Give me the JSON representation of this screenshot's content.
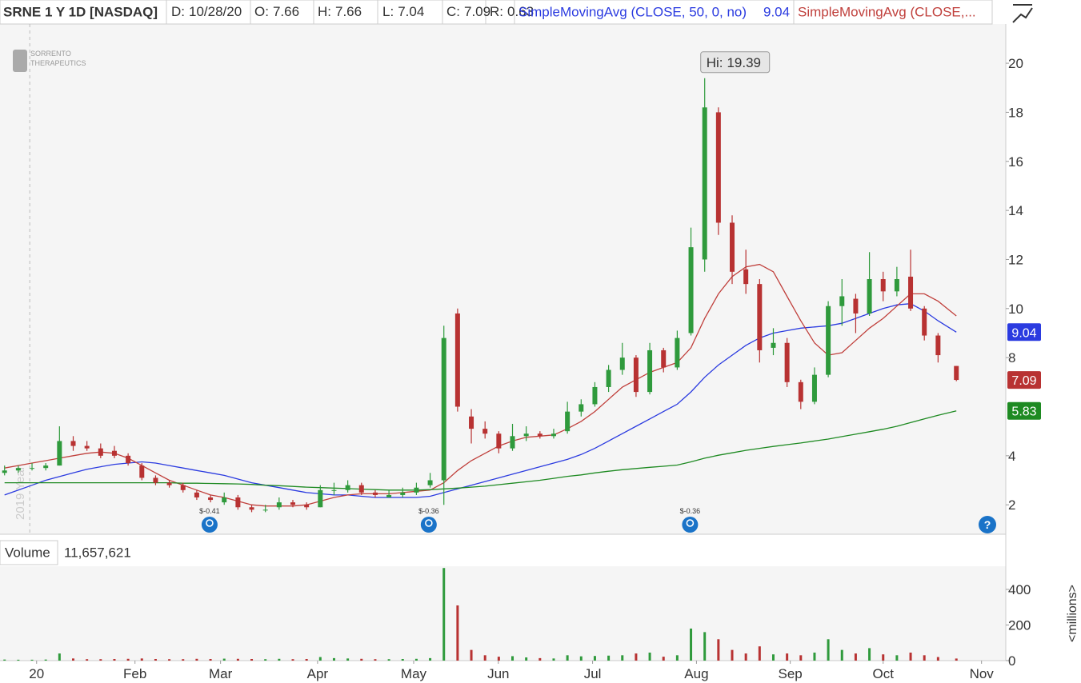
{
  "header": {
    "symbol": "SRNE 1 Y 1D [NASDAQ]",
    "date_label": "D:",
    "date": "10/28/20",
    "open_label": "O:",
    "high_label": "H:",
    "low_label": "L:",
    "close_label": "C:",
    "range_label": "R:",
    "range": 0.63
  },
  "chart_data": [
    {
      "type": "candlestick",
      "x": [
        0,
        3,
        6,
        9,
        12,
        15,
        18,
        21,
        24,
        27,
        30,
        33,
        36,
        39,
        42,
        45,
        48,
        51,
        54,
        57,
        60,
        63,
        66,
        69,
        72,
        75,
        78,
        81,
        84,
        87,
        90,
        93,
        96,
        99,
        102,
        105,
        108,
        111,
        114,
        117,
        120,
        123,
        126,
        129,
        132,
        135,
        138,
        141,
        144,
        147,
        150,
        153,
        156,
        159,
        162,
        165,
        168,
        171,
        174,
        177,
        180,
        183,
        186,
        189,
        192,
        195,
        198,
        201,
        204,
        208
      ],
      "open": [
        3.3,
        3.4,
        3.5,
        3.5,
        3.6,
        4.6,
        4.4,
        4.3,
        4.2,
        4.0,
        3.6,
        3.1,
        2.9,
        2.8,
        2.5,
        2.3,
        2.1,
        2.3,
        1.9,
        1.8,
        1.9,
        2.1,
        2.0,
        1.9,
        2.6,
        2.6,
        2.8,
        2.5,
        2.3,
        2.4,
        2.5,
        2.8,
        3.0,
        9.8,
        5.6,
        5.1,
        4.9,
        4.3,
        4.8,
        4.9,
        4.8,
        5.0,
        5.8,
        6.1,
        6.8,
        7.5,
        8.0,
        6.6,
        8.3,
        7.6,
        9.0,
        12.0,
        18.0,
        13.5,
        11.6,
        11.0,
        8.4,
        8.6,
        7.0,
        6.2,
        7.3,
        10.1,
        10.4,
        9.8,
        11.2,
        10.7,
        11.3,
        10.0,
        8.9,
        7.66
      ],
      "high": [
        3.6,
        3.6,
        3.7,
        3.7,
        5.2,
        4.8,
        4.6,
        4.5,
        4.4,
        4.1,
        3.7,
        3.2,
        3.0,
        2.9,
        2.6,
        2.4,
        2.5,
        2.4,
        2.0,
        2.0,
        2.3,
        2.2,
        2.1,
        2.8,
        2.9,
        3.0,
        2.9,
        2.6,
        2.6,
        2.7,
        2.9,
        3.3,
        9.3,
        10.0,
        5.9,
        5.4,
        5.0,
        5.3,
        5.2,
        5.0,
        5.1,
        6.2,
        6.3,
        7.0,
        7.7,
        8.6,
        8.1,
        8.6,
        8.4,
        9.1,
        13.3,
        19.39,
        18.2,
        13.8,
        12.4,
        11.2,
        9.2,
        8.8,
        7.1,
        7.6,
        10.3,
        11.2,
        10.6,
        12.3,
        11.5,
        11.7,
        12.4,
        10.1,
        9.0,
        7.66
      ],
      "low": [
        3.2,
        3.3,
        3.4,
        3.4,
        3.6,
        4.2,
        4.2,
        3.9,
        3.9,
        3.6,
        3.0,
        2.8,
        2.7,
        2.5,
        2.2,
        2.1,
        2.0,
        1.8,
        1.7,
        1.7,
        1.8,
        1.9,
        1.8,
        1.9,
        2.4,
        2.5,
        2.4,
        2.3,
        2.3,
        2.3,
        2.4,
        2.7,
        2.0,
        5.8,
        4.5,
        4.7,
        4.1,
        4.2,
        4.6,
        4.7,
        4.7,
        4.9,
        5.6,
        6.0,
        6.6,
        7.3,
        6.4,
        6.5,
        7.4,
        7.5,
        8.9,
        11.5,
        13.0,
        11.0,
        10.6,
        7.8,
        8.1,
        6.8,
        5.9,
        6.1,
        7.2,
        9.3,
        9.0,
        9.7,
        10.3,
        10.5,
        9.9,
        8.7,
        7.8,
        7.04
      ],
      "close": [
        3.4,
        3.5,
        3.5,
        3.6,
        4.6,
        4.4,
        4.3,
        4.0,
        4.0,
        3.7,
        3.1,
        2.9,
        2.8,
        2.6,
        2.3,
        2.2,
        2.3,
        1.9,
        1.8,
        1.8,
        2.1,
        2.0,
        1.9,
        2.6,
        2.6,
        2.8,
        2.5,
        2.4,
        2.4,
        2.5,
        2.7,
        3.0,
        8.8,
        6.0,
        5.1,
        4.9,
        4.3,
        4.8,
        4.9,
        4.8,
        4.9,
        5.8,
        6.1,
        6.8,
        7.5,
        8.0,
        6.6,
        8.3,
        7.6,
        8.8,
        12.5,
        18.2,
        13.5,
        11.5,
        11.0,
        8.3,
        8.6,
        7.0,
        6.2,
        7.3,
        10.1,
        10.5,
        9.8,
        11.2,
        10.7,
        11.2,
        10.0,
        8.9,
        8.1,
        7.09
      ],
      "up_color": "#2f9a3c",
      "down_color": "#b83232",
      "series": [
        {
          "name": "SimpleMovingAvg (CLOSE, 50, 0, no)",
          "color": "#2b3be0",
          "values": [
            2.4,
            2.6,
            2.8,
            3.0,
            3.15,
            3.3,
            3.45,
            3.55,
            3.65,
            3.7,
            3.75,
            3.7,
            3.6,
            3.5,
            3.4,
            3.3,
            3.2,
            3.05,
            2.9,
            2.8,
            2.7,
            2.6,
            2.5,
            2.45,
            2.4,
            2.4,
            2.35,
            2.3,
            2.3,
            2.3,
            2.3,
            2.35,
            2.5,
            2.65,
            2.8,
            2.95,
            3.1,
            3.25,
            3.4,
            3.55,
            3.7,
            3.85,
            4.05,
            4.3,
            4.6,
            4.9,
            5.2,
            5.5,
            5.8,
            6.1,
            6.6,
            7.2,
            7.7,
            8.1,
            8.5,
            8.8,
            9.0,
            9.1,
            9.2,
            9.25,
            9.3,
            9.4,
            9.6,
            9.8,
            10.0,
            10.15,
            10.2,
            9.9,
            9.5,
            9.04
          ]
        },
        {
          "name": "SimpleMovingAvg (CLOSE,...",
          "color": "#c0403c",
          "values": [
            3.5,
            3.6,
            3.7,
            3.8,
            3.9,
            4.0,
            4.1,
            4.15,
            4.1,
            3.9,
            3.6,
            3.3,
            3.0,
            2.8,
            2.6,
            2.4,
            2.3,
            2.15,
            2.0,
            1.95,
            1.95,
            1.95,
            2.0,
            2.15,
            2.3,
            2.4,
            2.45,
            2.45,
            2.45,
            2.5,
            2.55,
            2.6,
            2.9,
            3.4,
            3.8,
            4.1,
            4.4,
            4.6,
            4.75,
            4.8,
            4.85,
            5.1,
            5.4,
            5.8,
            6.3,
            6.8,
            7.1,
            7.4,
            7.6,
            7.8,
            8.4,
            9.6,
            10.6,
            11.3,
            11.7,
            11.8,
            11.5,
            10.5,
            9.5,
            8.6,
            8.1,
            8.2,
            8.7,
            9.2,
            9.6,
            10.1,
            10.6,
            10.6,
            10.3,
            9.7
          ]
        },
        {
          "color": "#1e8a22",
          "values": [
            2.9,
            2.9,
            2.9,
            2.9,
            2.9,
            2.9,
            2.9,
            2.9,
            2.9,
            2.9,
            2.9,
            2.9,
            2.9,
            2.88,
            2.88,
            2.87,
            2.86,
            2.85,
            2.83,
            2.8,
            2.78,
            2.75,
            2.72,
            2.7,
            2.68,
            2.66,
            2.64,
            2.62,
            2.6,
            2.6,
            2.6,
            2.62,
            2.65,
            2.68,
            2.72,
            2.76,
            2.82,
            2.88,
            2.94,
            3.0,
            3.08,
            3.16,
            3.22,
            3.3,
            3.37,
            3.43,
            3.48,
            3.53,
            3.57,
            3.62,
            3.75,
            3.9,
            4.02,
            4.12,
            4.22,
            4.3,
            4.38,
            4.45,
            4.52,
            4.6,
            4.68,
            4.78,
            4.88,
            4.98,
            5.08,
            5.2,
            5.35,
            5.5,
            5.65,
            5.83
          ]
        }
      ],
      "xlim": [
        -1,
        218.8
      ],
      "ylim": [
        0.8,
        21.6
      ],
      "yticks": [
        2,
        4,
        8,
        10,
        12,
        14,
        16,
        18,
        20
      ],
      "xticks": [
        {
          "value": 7,
          "label": "20"
        },
        {
          "value": 28.5,
          "label": "Feb"
        },
        {
          "value": 47.2,
          "label": "Mar"
        },
        {
          "value": 68.4,
          "label": "Apr"
        },
        {
          "value": 89.4,
          "label": "May"
        },
        {
          "value": 107.9,
          "label": "Jun"
        },
        {
          "value": 128.5,
          "label": "Jul"
        },
        {
          "value": 151.2,
          "label": "Aug"
        },
        {
          "value": 171.7,
          "label": "Sep"
        },
        {
          "value": 192,
          "label": "Oct"
        },
        {
          "value": 213.5,
          "label": "Nov"
        }
      ],
      "high_annotation": "Hi:",
      "earnings": [
        {
          "x": 44.8,
          "label": "$-0.41"
        },
        {
          "x": 92.7,
          "label": "$-0.36"
        },
        {
          "x": 149.8,
          "label": "$-0.36"
        }
      ],
      "year_divider": {
        "x": 5.5,
        "label": "2019 Year"
      },
      "watermark": [
        "SORRENTO",
        "THERAPEUTICS"
      ]
    },
    {
      "type": "bar",
      "title": "Volume",
      "readout": "11,657,621",
      "axis_label": "<millions>",
      "values": [
        6,
        5,
        5,
        6,
        40,
        12,
        8,
        8,
        9,
        10,
        12,
        9,
        8,
        8,
        10,
        9,
        11,
        10,
        9,
        8,
        10,
        8,
        9,
        20,
        14,
        12,
        10,
        8,
        8,
        9,
        10,
        14,
        520,
        310,
        60,
        30,
        22,
        25,
        18,
        14,
        12,
        30,
        24,
        26,
        28,
        30,
        40,
        45,
        22,
        30,
        180,
        160,
        120,
        60,
        40,
        80,
        35,
        40,
        30,
        45,
        120,
        60,
        40,
        70,
        35,
        30,
        45,
        30,
        20,
        11.657621
      ],
      "ylim": [
        0,
        530
      ],
      "yticks": [
        0,
        200,
        400
      ]
    }
  ]
}
